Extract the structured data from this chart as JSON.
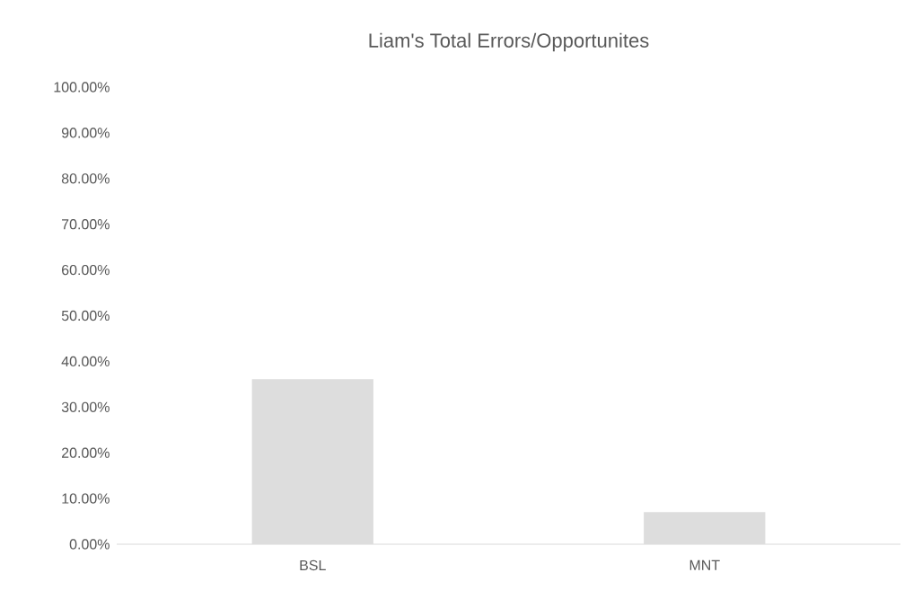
{
  "chart_data": {
    "type": "bar",
    "title": "Liam's Total Errors/Opportunites",
    "categories": [
      "BSL",
      "MNT"
    ],
    "values": [
      36.1,
      7.0
    ],
    "color": "#dddddd",
    "ylim": [
      0,
      100
    ],
    "yticks": [
      {
        "value": 0,
        "label": "0.00%"
      },
      {
        "value": 10,
        "label": "10.00%"
      },
      {
        "value": 20,
        "label": "20.00%"
      },
      {
        "value": 30,
        "label": "30.00%"
      },
      {
        "value": 40,
        "label": "40.00%"
      },
      {
        "value": 50,
        "label": "50.00%"
      },
      {
        "value": 60,
        "label": "60.00%"
      },
      {
        "value": 70,
        "label": "70.00%"
      },
      {
        "value": 80,
        "label": "80.00%"
      },
      {
        "value": 90,
        "label": "90.00%"
      },
      {
        "value": 100,
        "label": "100.00%"
      }
    ],
    "grid": false
  }
}
